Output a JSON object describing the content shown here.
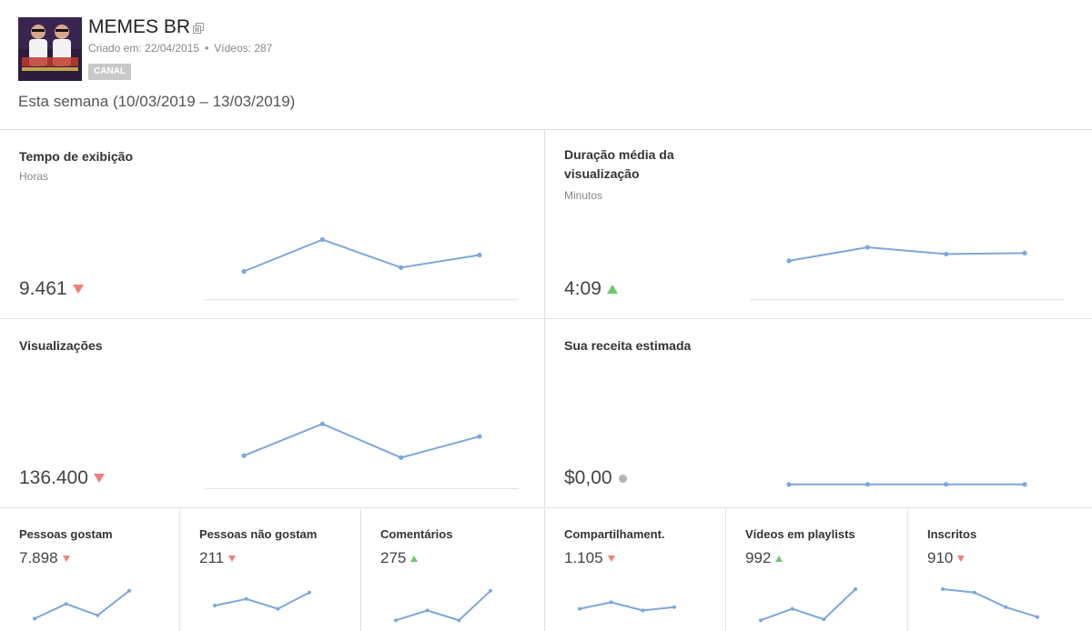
{
  "channel": {
    "name": "MEMES BR",
    "created_label": "Criado em: 22/04/2015",
    "videos_label": "Vídeos: 287",
    "separator": "•",
    "badge": "CANAL",
    "period": "Esta semana (10/03/2019 – 13/03/2019)"
  },
  "colors": {
    "line": "#7ba7dc",
    "down": "#ef7f7f",
    "up": "#6fc66f",
    "neutral": "#b5b5b5"
  },
  "metrics": {
    "watch_time": {
      "title": "Tempo de exibição",
      "unit": "Horas",
      "value": "9.461",
      "trend": "down",
      "spark": [
        0.25,
        0.58,
        0.29,
        0.42
      ]
    },
    "avg_duration": {
      "title_line1": "Duração média da",
      "title_line2": "visualização",
      "unit": "Minutos",
      "value": "4:09",
      "trend": "up",
      "spark": [
        0.36,
        0.5,
        0.43,
        0.44
      ]
    },
    "views": {
      "title": "Visualizações",
      "value": "136.400",
      "trend": "down",
      "spark": [
        0.3,
        0.63,
        0.28,
        0.5
      ]
    },
    "revenue": {
      "title": "Sua receita estimada",
      "value": "$0,00",
      "trend": "neutral",
      "spark": [
        0.04,
        0.04,
        0.04,
        0.04
      ]
    }
  },
  "small_metrics": [
    {
      "title": "Pessoas gostam",
      "value": "7.898",
      "trend": "down",
      "spark": [
        0.1,
        0.55,
        0.2,
        0.95
      ]
    },
    {
      "title": "Pessoas não gostam",
      "value": "211",
      "trend": "down",
      "spark": [
        0.5,
        0.7,
        0.4,
        0.9
      ]
    },
    {
      "title": "Comentários",
      "value": "275",
      "trend": "up",
      "spark": [
        0.05,
        0.35,
        0.05,
        0.95
      ]
    },
    {
      "title": "Compartilhament.",
      "value": "1.105",
      "trend": "down",
      "spark": [
        0.4,
        0.6,
        0.35,
        0.45
      ]
    },
    {
      "title": "Vídeos em playlists",
      "value": "992",
      "trend": "up",
      "spark": [
        0.05,
        0.4,
        0.08,
        1.0
      ]
    },
    {
      "title": "Inscritos",
      "value": "910",
      "trend": "down",
      "spark": [
        1.0,
        0.9,
        0.45,
        0.15
      ]
    }
  ]
}
